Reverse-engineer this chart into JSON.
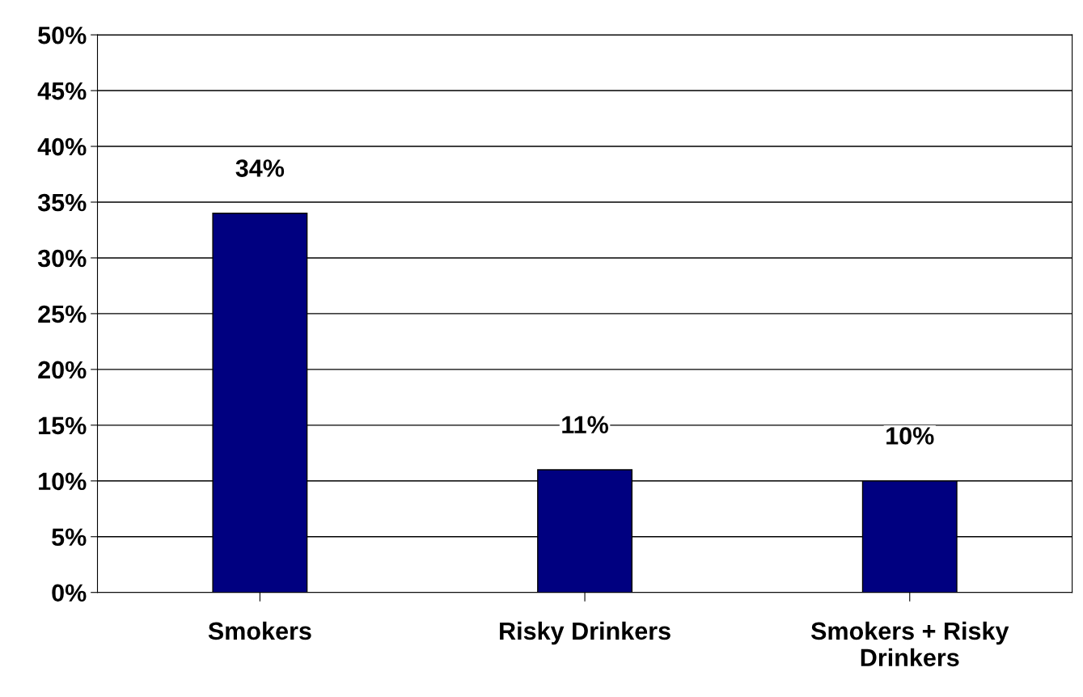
{
  "chart_data": {
    "type": "bar",
    "categories": [
      "Smokers",
      "Risky Drinkers",
      "Smokers + Risky\nDrinkers"
    ],
    "values": [
      34,
      11,
      10
    ],
    "color": "#000080",
    "value_labels": [
      "34%",
      "11%",
      "10%"
    ],
    "ylim": [
      0,
      50
    ],
    "yticks": [
      {
        "value": 0,
        "label": "0%"
      },
      {
        "value": 5,
        "label": "5%"
      },
      {
        "value": 10,
        "label": "10%"
      },
      {
        "value": 15,
        "label": "15%"
      },
      {
        "value": 20,
        "label": "20%"
      },
      {
        "value": 25,
        "label": "25%"
      },
      {
        "value": 30,
        "label": "30%"
      },
      {
        "value": 35,
        "label": "35%"
      },
      {
        "value": 40,
        "label": "40%"
      },
      {
        "value": 45,
        "label": "45%"
      },
      {
        "value": 50,
        "label": "50%"
      }
    ],
    "grid": "y"
  }
}
